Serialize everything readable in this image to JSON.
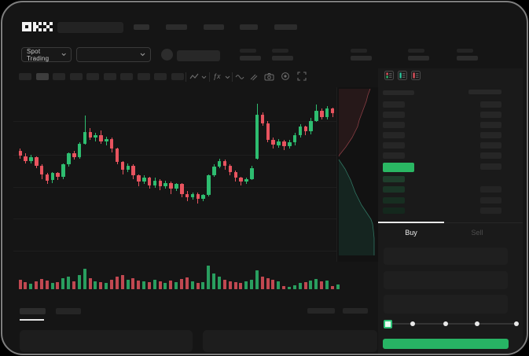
{
  "app": {
    "brand": "OKX"
  },
  "colors": {
    "up": "#2ebd70",
    "down": "#e8545f",
    "last_price": "#2ab763",
    "buy_button": "#27b464",
    "slider_accent": "#2ec277",
    "panel": "#1a1a1a",
    "placeholder": "#2c2c2c"
  },
  "header": {
    "market_selector_label": "Spot Trading",
    "nav_placeholder_count": 5,
    "ticker_stat_count": 5
  },
  "toolbar": {
    "timeframe_count": 10,
    "selected_timeframe_index": 1,
    "fx_label": "ƒx",
    "icons": [
      "candle-type-icon",
      "chevron-down-icon",
      "indicators-fx-icon",
      "chevron-down-icon",
      "line-style-icon",
      "compare-icon",
      "camera-icon",
      "gear-icon",
      "fullscreen-icon"
    ]
  },
  "orderbook": {
    "layout_icons": [
      "book-both-icon",
      "book-buy-icon",
      "book-sell-icon"
    ],
    "ask_row_count": 6,
    "extra_ask_amount_row": true,
    "bid_row_count": 4,
    "bid_amount_row_indices": [
      1,
      2,
      3
    ],
    "bid_row_shades": [
      "#1e3d2b",
      "#1a3526",
      "#172e21",
      "#14281d"
    ]
  },
  "trade_panel": {
    "buy_tab": "Buy",
    "sell_tab": "Sell",
    "active_tab": "Buy",
    "input_count": 3,
    "slider": {
      "stop_count": 5,
      "selected_index": 0
    }
  },
  "bottom_bar": {
    "tab_count": 2,
    "active_tab_index": 0,
    "right_placeholder_count": 2,
    "panel_count": 2
  },
  "chart_data": {
    "type": "candlestick",
    "title": "",
    "xlabel": "",
    "ylabel": "",
    "price_scale": {
      "min": 0,
      "max": 100
    },
    "gridlines": true,
    "candle_format": [
      "open",
      "close",
      "high",
      "low"
    ],
    "candles": [
      [
        54,
        50,
        56,
        48
      ],
      [
        50,
        46,
        52,
        44
      ],
      [
        46,
        49,
        51,
        44
      ],
      [
        49,
        42,
        50,
        40
      ],
      [
        42,
        35,
        43,
        31
      ],
      [
        35,
        30,
        36,
        27
      ],
      [
        30,
        36,
        37,
        28
      ],
      [
        36,
        33,
        37,
        30
      ],
      [
        33,
        43,
        44,
        31
      ],
      [
        43,
        52,
        53,
        41
      ],
      [
        52,
        49,
        54,
        47
      ],
      [
        49,
        60,
        61,
        48
      ],
      [
        60,
        70,
        83,
        59
      ],
      [
        70,
        65,
        73,
        63
      ],
      [
        65,
        67,
        69,
        62
      ],
      [
        67,
        62,
        71,
        60
      ],
      [
        62,
        64,
        66,
        59
      ],
      [
        64,
        56,
        65,
        53
      ],
      [
        56,
        45,
        57,
        43
      ],
      [
        45,
        39,
        46,
        35
      ],
      [
        39,
        42,
        44,
        37
      ],
      [
        42,
        34,
        43,
        31
      ],
      [
        34,
        29,
        35,
        25
      ],
      [
        29,
        32,
        34,
        27
      ],
      [
        32,
        26,
        33,
        23
      ],
      [
        26,
        30,
        32,
        24
      ],
      [
        30,
        25,
        31,
        22
      ],
      [
        25,
        28,
        30,
        23
      ],
      [
        28,
        23,
        29,
        19
      ],
      [
        23,
        27,
        28,
        21
      ],
      [
        27,
        19,
        28,
        16
      ],
      [
        19,
        16,
        21,
        13
      ],
      [
        16,
        19,
        20,
        14
      ],
      [
        19,
        15,
        20,
        11
      ],
      [
        15,
        18,
        19,
        13
      ],
      [
        18,
        34,
        35,
        17
      ],
      [
        34,
        41,
        43,
        33
      ],
      [
        41,
        46,
        48,
        40
      ],
      [
        46,
        42,
        47,
        39
      ],
      [
        42,
        37,
        43,
        34
      ],
      [
        37,
        32,
        38,
        29
      ],
      [
        32,
        29,
        33,
        26
      ],
      [
        29,
        31,
        32,
        27
      ],
      [
        31,
        40,
        42,
        30
      ],
      [
        48,
        84,
        93,
        47
      ],
      [
        84,
        77,
        86,
        75
      ],
      [
        77,
        63,
        79,
        61
      ],
      [
        63,
        59,
        65,
        56
      ],
      [
        59,
        62,
        64,
        57
      ],
      [
        62,
        58,
        63,
        55
      ],
      [
        58,
        61,
        63,
        56
      ],
      [
        61,
        67,
        69,
        59
      ],
      [
        67,
        74,
        76,
        65
      ],
      [
        74,
        70,
        75,
        67
      ],
      [
        70,
        79,
        81,
        68
      ],
      [
        79,
        87,
        92,
        78
      ],
      [
        87,
        82,
        89,
        80
      ],
      [
        82,
        89,
        91,
        80
      ],
      [
        89,
        85,
        90,
        82
      ],
      [
        85,
        88,
        90,
        83
      ]
    ],
    "volume": [
      12,
      9,
      7,
      10,
      13,
      11,
      8,
      9,
      14,
      16,
      10,
      18,
      26,
      14,
      10,
      9,
      8,
      12,
      16,
      18,
      12,
      14,
      11,
      10,
      9,
      12,
      10,
      8,
      11,
      9,
      13,
      15,
      10,
      8,
      9,
      30,
      20,
      16,
      12,
      10,
      9,
      8,
      10,
      12,
      24,
      16,
      14,
      12,
      10,
      4,
      3,
      5,
      8,
      9,
      11,
      13,
      10,
      11,
      4,
      6
    ],
    "depth": {
      "asks": [
        [
          42,
          2
        ],
        [
          39,
          10
        ],
        [
          37,
          18
        ],
        [
          34,
          26
        ],
        [
          31,
          34
        ],
        [
          28,
          42
        ],
        [
          26,
          50
        ],
        [
          22,
          58
        ],
        [
          19,
          64
        ],
        [
          15,
          70
        ],
        [
          11,
          76
        ],
        [
          7,
          81
        ],
        [
          3,
          86
        ],
        [
          2,
          88
        ]
      ],
      "bids": [
        [
          2,
          92
        ],
        [
          6,
          98
        ],
        [
          10,
          104
        ],
        [
          13,
          110
        ],
        [
          17,
          118
        ],
        [
          20,
          126
        ],
        [
          23,
          134
        ],
        [
          27,
          142
        ],
        [
          31,
          150
        ],
        [
          35,
          156
        ],
        [
          39,
          162
        ],
        [
          43,
          168
        ],
        [
          45,
          174
        ],
        [
          46,
          182
        ],
        [
          47,
          192
        ],
        [
          47,
          214
        ]
      ]
    }
  }
}
